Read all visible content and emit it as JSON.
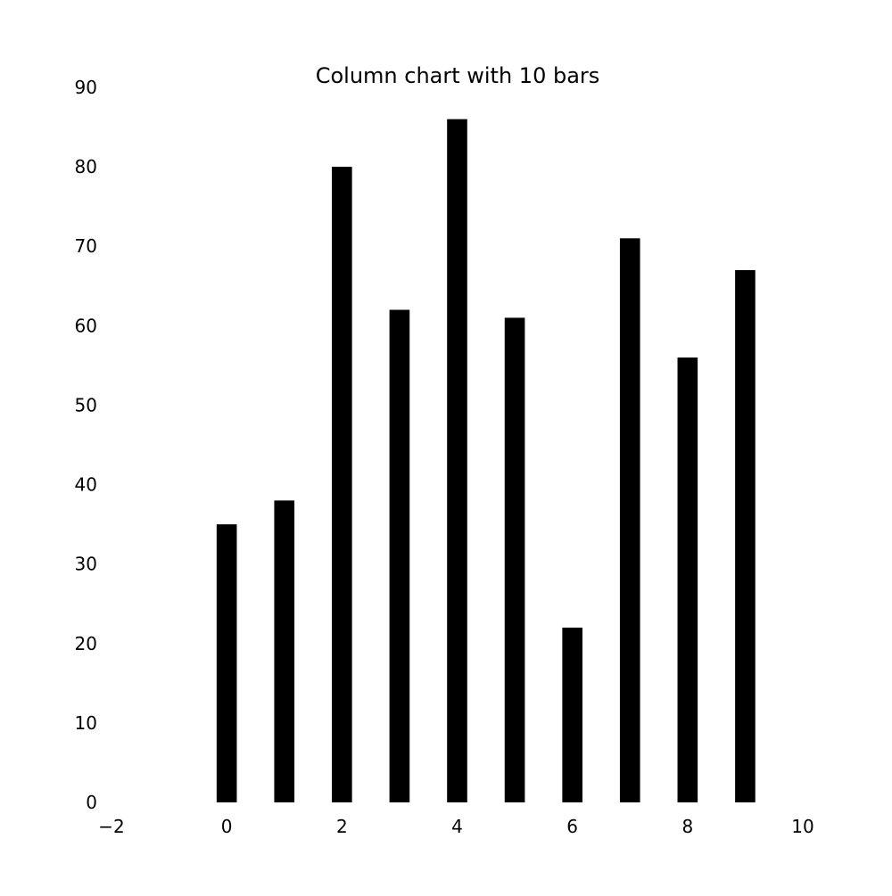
{
  "chart_data": {
    "type": "bar",
    "title": "Column chart with 10 bars",
    "xlabel": "",
    "ylabel": "",
    "x": [
      0,
      1,
      2,
      3,
      4,
      5,
      6,
      7,
      8,
      9
    ],
    "values": [
      35,
      38,
      80,
      62,
      86,
      61,
      22,
      71,
      56,
      67
    ],
    "xlim": [
      -2,
      10
    ],
    "ylim": [
      0,
      90
    ],
    "xticks": [
      -2,
      0,
      2,
      4,
      6,
      8,
      10
    ],
    "xtick_labels": [
      "−2",
      "0",
      "2",
      "4",
      "6",
      "8",
      "10"
    ],
    "yticks": [
      0,
      10,
      20,
      30,
      40,
      50,
      60,
      70,
      80,
      90
    ],
    "ytick_labels": [
      "0",
      "10",
      "20",
      "30",
      "40",
      "50",
      "60",
      "70",
      "80",
      "90"
    ],
    "bar_color": "#000000",
    "grid": false,
    "axes_lines": false
  }
}
